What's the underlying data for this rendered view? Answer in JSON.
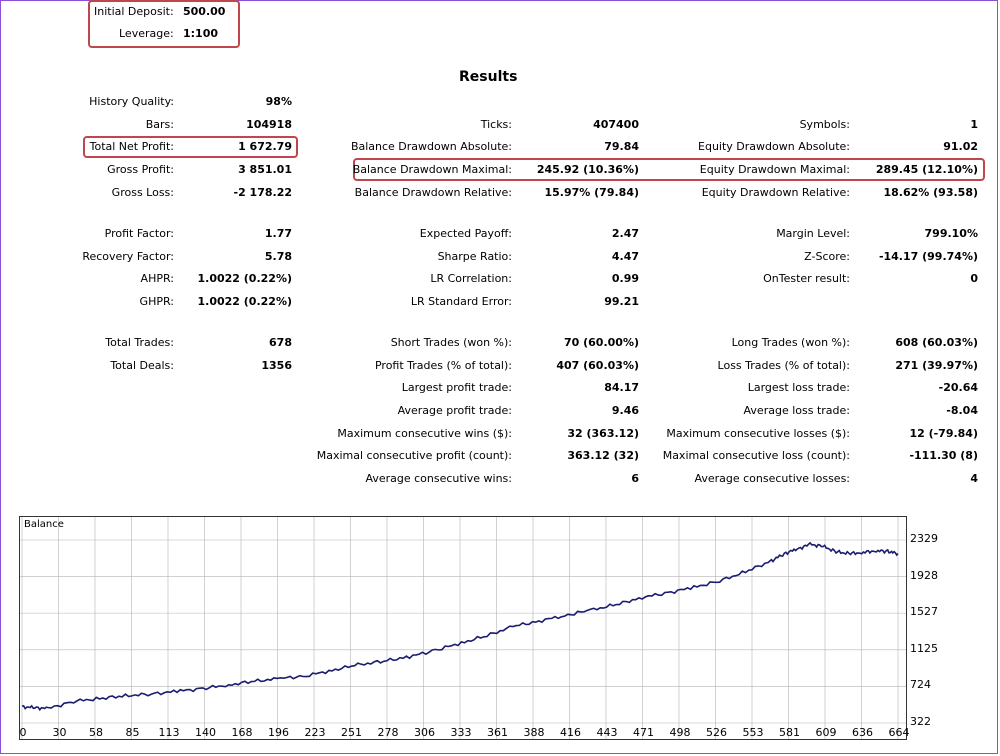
{
  "header": {
    "initial_deposit_label": "Initial Deposit:",
    "initial_deposit_value": "500.00",
    "leverage_label": "Leverage:",
    "leverage_value": "1:100",
    "results_title": "Results"
  },
  "col1": [
    {
      "label": "History Quality:",
      "value": "98%"
    },
    {
      "label": "Bars:",
      "value": "104918"
    },
    {
      "label": "Total Net Profit:",
      "value": "1 672.79"
    },
    {
      "label": "Gross Profit:",
      "value": "3 851.01"
    },
    {
      "label": "Gross Loss:",
      "value": "-2 178.22"
    },
    {
      "label": "Profit Factor:",
      "value": "1.77"
    },
    {
      "label": "Recovery Factor:",
      "value": "5.78"
    },
    {
      "label": "AHPR:",
      "value": "1.0022 (0.22%)"
    },
    {
      "label": "GHPR:",
      "value": "1.0022 (0.22%)"
    },
    {
      "label": "Total Trades:",
      "value": "678"
    },
    {
      "label": "Total Deals:",
      "value": "1356"
    }
  ],
  "col2": [
    {
      "label": "Ticks:",
      "value": "407400"
    },
    {
      "label": "Balance Drawdown Absolute:",
      "value": "79.84"
    },
    {
      "label": "Balance Drawdown Maximal:",
      "value": "245.92 (10.36%)"
    },
    {
      "label": "Balance Drawdown Relative:",
      "value": "15.97% (79.84)"
    },
    {
      "label": "Expected Payoff:",
      "value": "2.47"
    },
    {
      "label": "Sharpe Ratio:",
      "value": "4.47"
    },
    {
      "label": "LR Correlation:",
      "value": "0.99"
    },
    {
      "label": "LR Standard Error:",
      "value": "99.21"
    },
    {
      "label": "Short Trades (won %):",
      "value": "70 (60.00%)"
    },
    {
      "label": "Profit Trades (% of total):",
      "value": "407 (60.03%)"
    },
    {
      "label": "Largest profit trade:",
      "value": "84.17"
    },
    {
      "label": "Average profit trade:",
      "value": "9.46"
    },
    {
      "label": "Maximum consecutive wins ($):",
      "value": "32 (363.12)"
    },
    {
      "label": "Maximal consecutive profit (count):",
      "value": "363.12 (32)"
    },
    {
      "label": "Average consecutive wins:",
      "value": "6"
    }
  ],
  "col3": [
    {
      "label": "Symbols:",
      "value": "1"
    },
    {
      "label": "Equity Drawdown Absolute:",
      "value": "91.02"
    },
    {
      "label": "Equity Drawdown Maximal:",
      "value": "289.45 (12.10%)"
    },
    {
      "label": "Equity Drawdown Relative:",
      "value": "18.62% (93.58)"
    },
    {
      "label": "Margin Level:",
      "value": "799.10%"
    },
    {
      "label": "Z-Score:",
      "value": "-14.17 (99.74%)"
    },
    {
      "label": "OnTester result:",
      "value": "0"
    },
    {
      "label": "Long Trades (won %):",
      "value": "608 (60.03%)"
    },
    {
      "label": "Loss Trades (% of total):",
      "value": "271 (39.97%)"
    },
    {
      "label": "Largest loss trade:",
      "value": "-20.64"
    },
    {
      "label": "Average loss trade:",
      "value": "-8.04"
    },
    {
      "label": "Maximum consecutive losses ($):",
      "value": "12 (-79.84)"
    },
    {
      "label": "Maximal consecutive loss (count):",
      "value": "-111.30 (8)"
    },
    {
      "label": "Average consecutive losses:",
      "value": "4"
    }
  ],
  "colors": {
    "highlight": "#c0464e",
    "balance_line": "#1c1c6e",
    "grid": "#b5b5b5"
  },
  "chart_data": {
    "type": "line",
    "title": "Balance",
    "x_ticks": [
      "0",
      "30",
      "58",
      "85",
      "113",
      "140",
      "168",
      "196",
      "223",
      "251",
      "278",
      "306",
      "333",
      "361",
      "388",
      "416",
      "443",
      "471",
      "498",
      "526",
      "553",
      "581",
      "609",
      "636",
      "664"
    ],
    "y_ticks": [
      "2329",
      "1928",
      "1527",
      "1125",
      "724",
      "322"
    ],
    "xlim": [
      0,
      678
    ],
    "ylim": [
      322,
      2329
    ],
    "series": [
      {
        "values_x": [
          0,
          10,
          20,
          40,
          60,
          80,
          100,
          120,
          140,
          160,
          180,
          200,
          220,
          240,
          260,
          280,
          300,
          320,
          340,
          360,
          380,
          400,
          420,
          440,
          460,
          480,
          500,
          520,
          540,
          560,
          580,
          590,
          600,
          610,
          620,
          630,
          640,
          650,
          660,
          670,
          678
        ],
        "values_y": [
          500,
          490,
          480,
          560,
          590,
          620,
          640,
          670,
          700,
          740,
          780,
          810,
          840,
          900,
          960,
          1000,
          1050,
          1120,
          1200,
          1280,
          1380,
          1440,
          1500,
          1560,
          1620,
          1700,
          1750,
          1810,
          1880,
          1980,
          2100,
          2180,
          2230,
          2280,
          2260,
          2200,
          2180,
          2190,
          2210,
          2205,
          2180
        ]
      }
    ]
  }
}
